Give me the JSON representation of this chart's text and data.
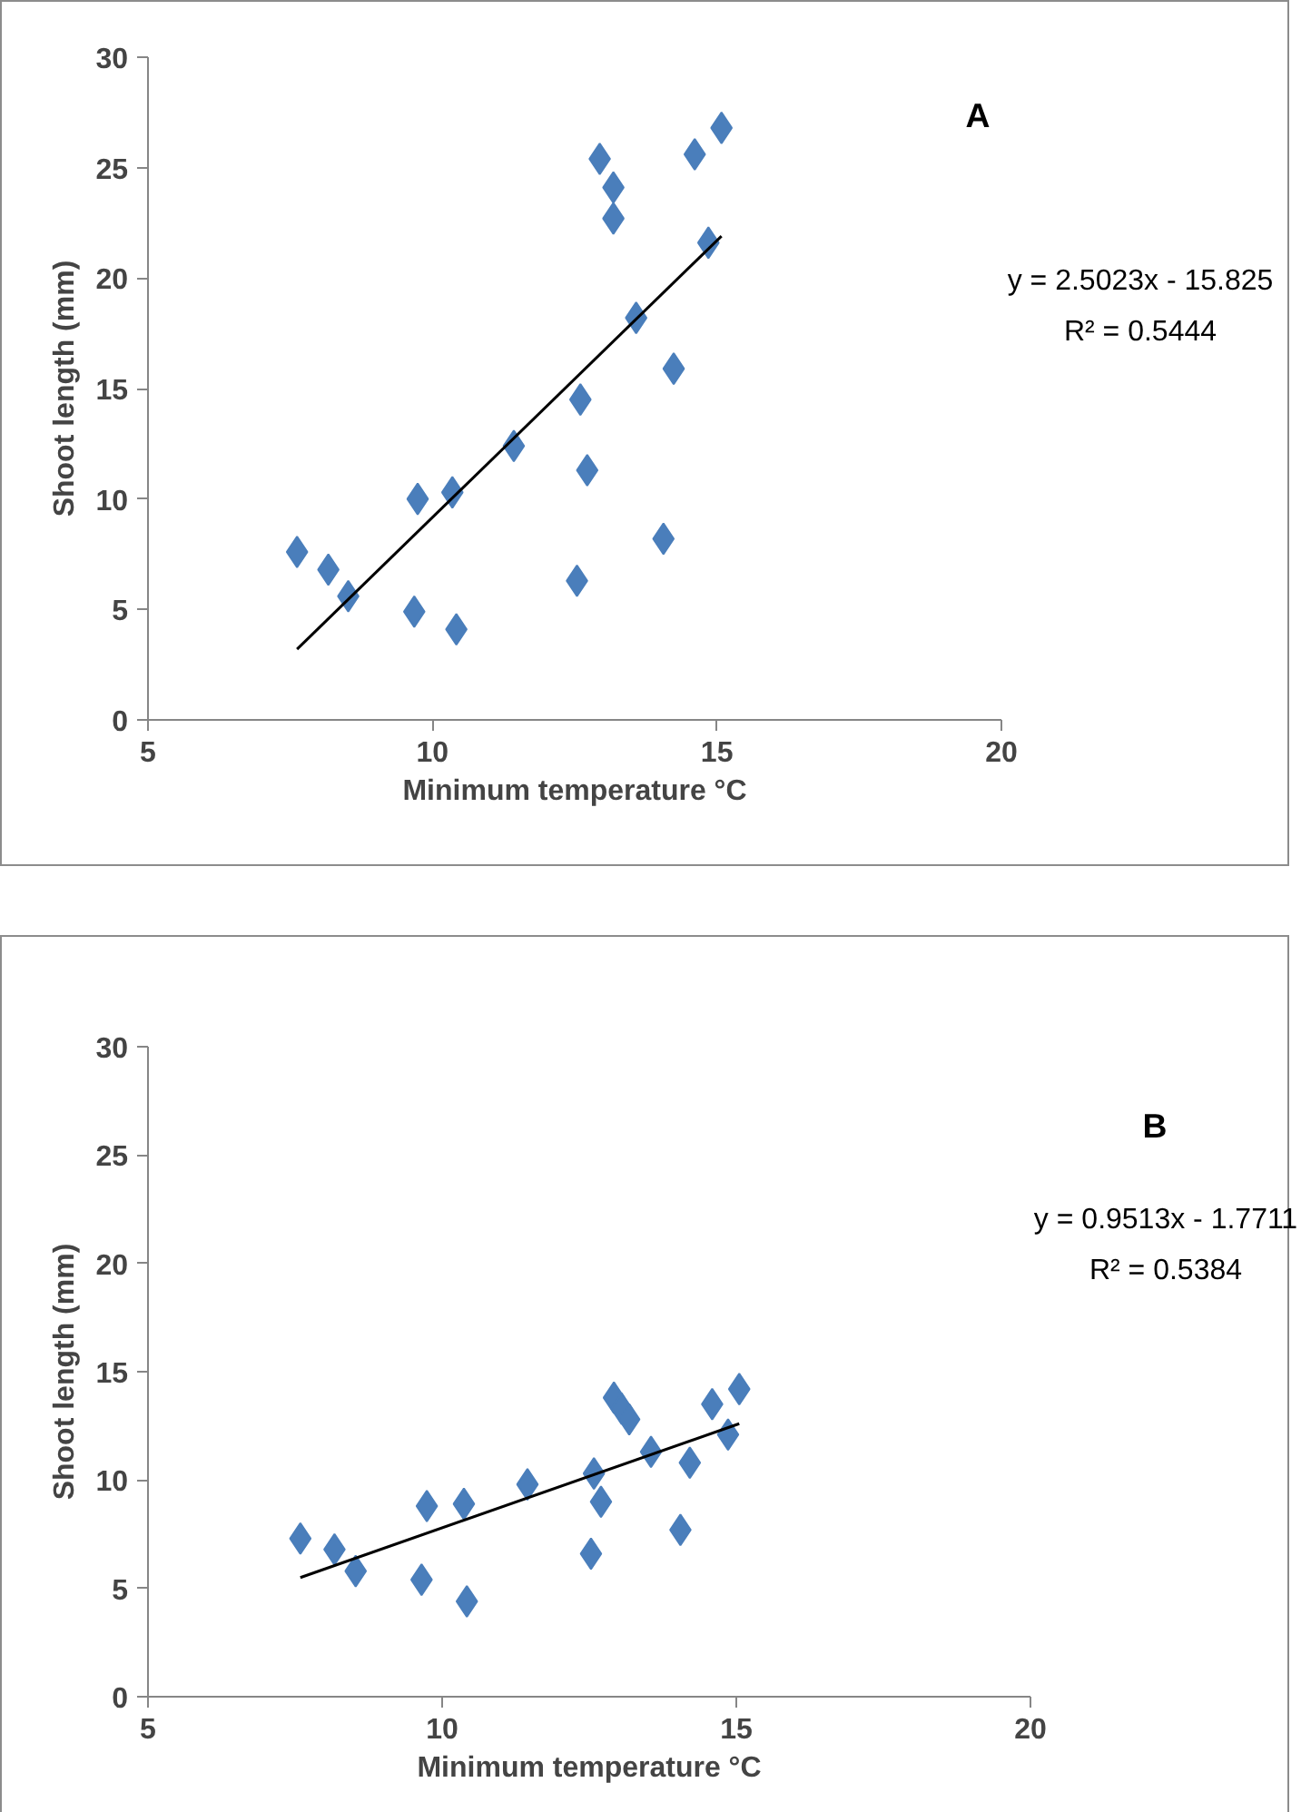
{
  "chart_data": [
    {
      "type": "scatter",
      "xlabel": "Minimum temperature °C",
      "ylabel": "Shoot length (mm)",
      "annotations": [
        "A",
        "y = 2.5023x - 15.825",
        "R² = 0.5444"
      ],
      "xlim": [
        5,
        20
      ],
      "xticks": [
        5,
        10,
        15,
        20
      ],
      "ylim": [
        0,
        30
      ],
      "yticks": [
        0,
        5,
        10,
        15,
        20,
        25,
        30
      ],
      "grid": false,
      "series": [
        {
          "marker": "diamond",
          "color": "#4a7ebb",
          "x": [
            7.62,
            8.17,
            8.52,
            9.74,
            9.68,
            10.35,
            10.42,
            11.43,
            12.6,
            12.72,
            12.54,
            12.94,
            13.18,
            13.18,
            13.58,
            14.24,
            14.06,
            14.61,
            14.85,
            15.08
          ],
          "values": [
            7.6,
            6.8,
            5.6,
            10.0,
            4.9,
            10.3,
            4.1,
            12.4,
            14.5,
            11.3,
            6.3,
            25.4,
            24.1,
            22.7,
            18.2,
            15.9,
            8.2,
            25.6,
            21.6,
            26.8
          ]
        },
        {
          "type": "line",
          "marker": "none",
          "color": "#000000",
          "x": [
            7.62,
            15.08
          ],
          "values": [
            3.2,
            21.9
          ]
        }
      ]
    },
    {
      "type": "scatter",
      "xlabel": "Minimum temperature °C",
      "ylabel": "Shoot length (mm)",
      "annotations": [
        "B",
        "y = 0.9513x - 1.7711",
        "R² = 0.5384"
      ],
      "xlim": [
        5,
        20
      ],
      "xticks": [
        5,
        10,
        15,
        20
      ],
      "ylim": [
        0,
        30
      ],
      "yticks": [
        0,
        5,
        10,
        15,
        20,
        25,
        30
      ],
      "grid": false,
      "series": [
        {
          "marker": "diamond",
          "color": "#4a7ebb",
          "x": [
            7.59,
            8.17,
            8.53,
            9.74,
            9.65,
            10.37,
            10.42,
            11.45,
            12.58,
            12.7,
            12.53,
            12.92,
            13.05,
            13.18,
            13.55,
            14.21,
            14.05,
            14.59,
            14.86,
            15.05
          ],
          "values": [
            7.3,
            6.8,
            5.8,
            8.8,
            5.4,
            8.9,
            4.4,
            9.8,
            10.3,
            9.0,
            6.6,
            13.8,
            13.3,
            12.8,
            11.3,
            10.8,
            7.7,
            13.5,
            12.1,
            14.2
          ]
        },
        {
          "type": "line",
          "marker": "none",
          "color": "#000000",
          "x": [
            7.59,
            15.05
          ],
          "values": [
            5.5,
            12.6
          ]
        }
      ]
    }
  ]
}
